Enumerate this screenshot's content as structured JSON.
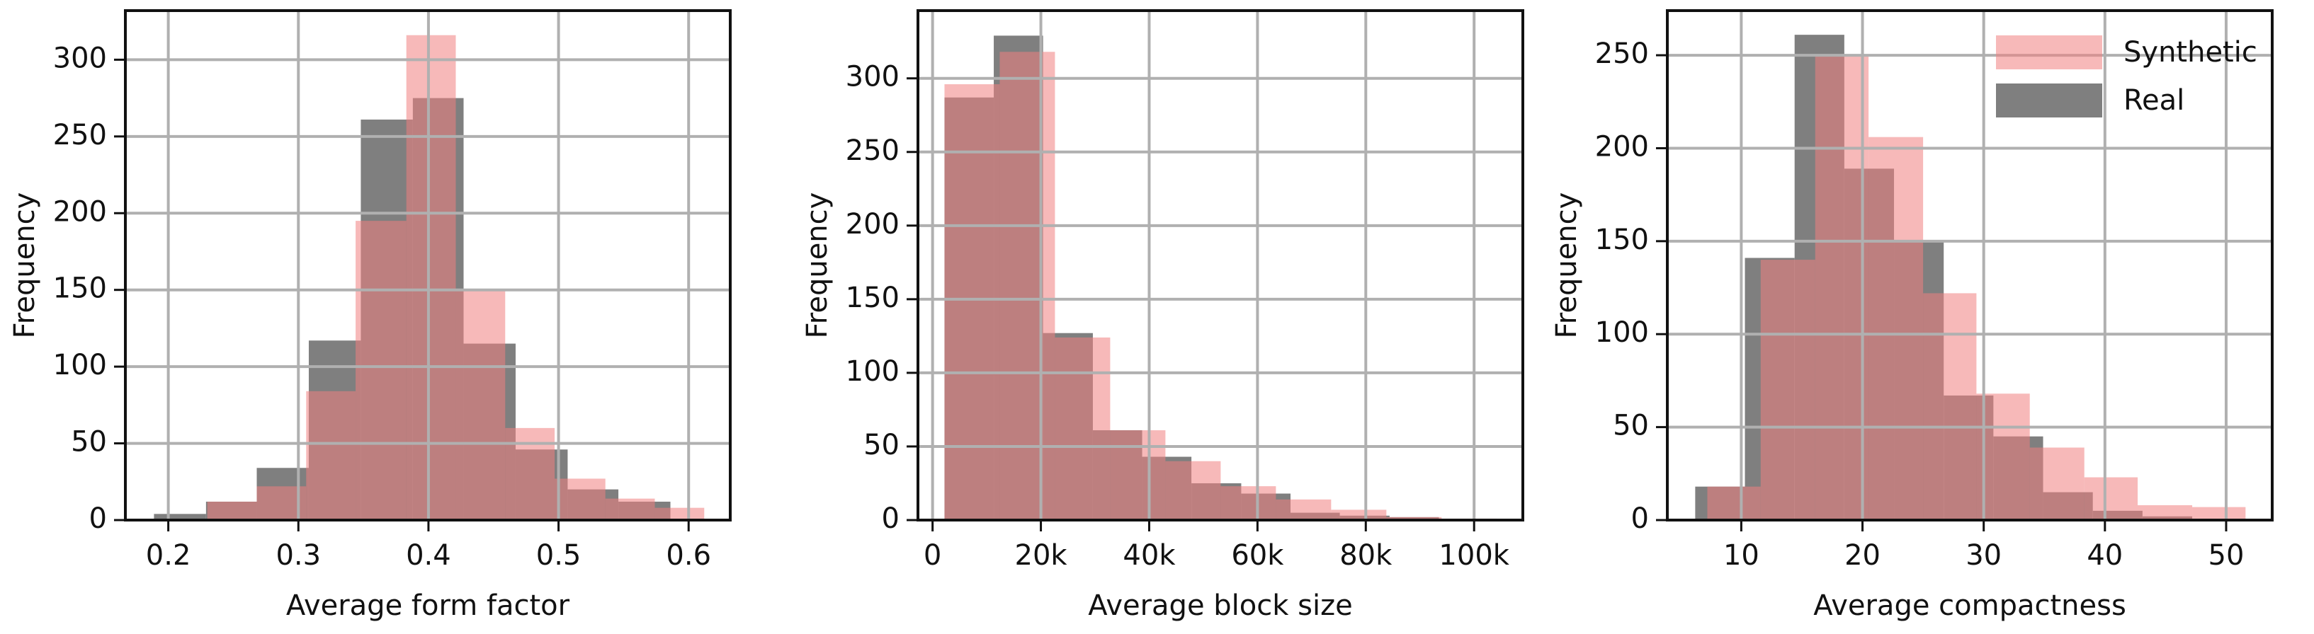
{
  "chart_data": [
    {
      "type": "histogram",
      "xlabel": "Average form factor",
      "ylabel": "Frequency",
      "xlim": [
        0.167,
        0.632
      ],
      "xticks": [
        0.2,
        0.3,
        0.4,
        0.5,
        0.6
      ],
      "ylim": [
        0,
        332
      ],
      "yticks": [
        0,
        50,
        100,
        150,
        200,
        250,
        300
      ],
      "grid": true,
      "series": [
        {
          "color": "#7f7f7f",
          "alpha": 1,
          "bins": [
            0.189,
            0.229,
            0.268,
            0.308,
            0.348,
            0.388,
            0.427,
            0.467,
            0.507,
            0.546,
            0.586
          ],
          "values": [
            4,
            12,
            34,
            117,
            261,
            275,
            115,
            46,
            20,
            12
          ]
        },
        {
          "color": "#f08080",
          "alpha": 0.55,
          "bins": [
            0.23,
            0.268,
            0.306,
            0.344,
            0.383,
            0.421,
            0.459,
            0.497,
            0.536,
            0.574,
            0.612
          ],
          "values": [
            12,
            22,
            84,
            195,
            316,
            150,
            60,
            27,
            14,
            8
          ]
        }
      ]
    },
    {
      "type": "histogram",
      "xlabel": "Average block size",
      "ylabel": "Frequency",
      "xlim": [
        -2700,
        109000
      ],
      "xticks": [
        0,
        {
          "value": 20000,
          "label": "20k"
        },
        {
          "value": 40000,
          "label": "40k"
        },
        {
          "value": 60000,
          "label": "60k"
        },
        {
          "value": 80000,
          "label": "80k"
        },
        {
          "value": 100000,
          "label": "100k"
        }
      ],
      "ylim": [
        0,
        346
      ],
      "yticks": [
        0,
        50,
        100,
        150,
        200,
        250,
        300
      ],
      "grid": true,
      "series": [
        {
          "color": "#7f7f7f",
          "alpha": 1,
          "bins": [
            2200,
            11300,
            20400,
            29600,
            38700,
            47800,
            57000,
            66100,
            75200,
            84400,
            93500
          ],
          "values": [
            287,
            329,
            127,
            61,
            43,
            25,
            18,
            5,
            3,
            2
          ]
        },
        {
          "color": "#f08080",
          "alpha": 0.55,
          "bins": [
            2200,
            12400,
            22600,
            32800,
            43000,
            53200,
            63400,
            73600,
            83800,
            94000,
            104200
          ],
          "values": [
            296,
            318,
            124,
            61,
            40,
            23,
            14,
            7,
            2,
            1
          ]
        }
      ]
    },
    {
      "type": "histogram",
      "xlabel": "Average compactness",
      "ylabel": "Frequency",
      "xlim": [
        3.9,
        53.8
      ],
      "xticks": [
        10,
        20,
        30,
        40,
        50
      ],
      "ylim": [
        0,
        274
      ],
      "yticks": [
        0,
        50,
        100,
        150,
        200,
        250
      ],
      "grid": true,
      "legend": "upper right",
      "series": [
        {
          "name": "Real",
          "color": "#7f7f7f",
          "alpha": 1,
          "bins": [
            6.2,
            10.3,
            14.4,
            18.5,
            22.6,
            26.7,
            30.8,
            34.9,
            39.0,
            43.1,
            47.2
          ],
          "values": [
            18,
            141,
            261,
            189,
            150,
            67,
            45,
            15,
            5,
            2
          ]
        },
        {
          "name": "Synthetic",
          "color": "#f08080",
          "alpha": 0.55,
          "bins": [
            7.2,
            11.6,
            16.1,
            20.5,
            25.0,
            29.4,
            33.8,
            38.3,
            42.7,
            47.2,
            51.6
          ],
          "values": [
            18,
            140,
            250,
            206,
            122,
            68,
            39,
            23,
            8,
            7
          ]
        }
      ]
    }
  ]
}
